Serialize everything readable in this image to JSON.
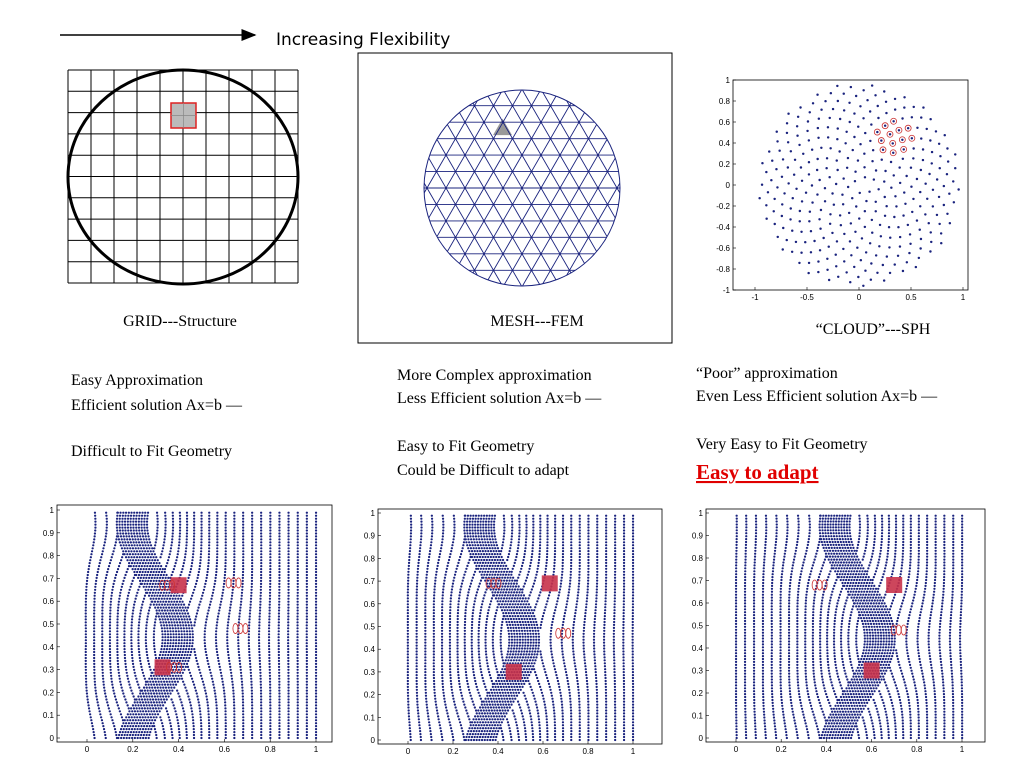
{
  "header": {
    "arrow_label": "Increasing Flexibility"
  },
  "panels": [
    {
      "caption": "GRID---Structure",
      "notes": [
        [
          "Easy Approximation",
          "Efficient solution Ax=b —"
        ],
        [
          "Difficult to Fit Geometry"
        ]
      ]
    },
    {
      "caption": "MESH---FEM",
      "notes": [
        [
          "More Complex approximation",
          "Less Efficient solution Ax=b —"
        ],
        [
          "Easy to Fit Geometry",
          "Could be Difficult to adapt"
        ]
      ]
    },
    {
      "caption": "“CLOUD”---SPH",
      "notes": [
        [
          "“Poor” approximation",
          "Even Less Efficient solution Ax=b —"
        ],
        [
          "Very Easy to Fit Geometry"
        ]
      ],
      "highlight": "Easy to adapt"
    }
  ],
  "cloud_plot": {
    "xticks": [
      -1,
      -0.5,
      0,
      0.5,
      1
    ],
    "yticks": [
      -1,
      -0.8,
      -0.6,
      -0.4,
      -0.2,
      0,
      0.2,
      0.4,
      0.6,
      0.8,
      1
    ]
  },
  "plots": [
    {
      "xticks": [
        0,
        0.2,
        0.4,
        0.6,
        0.8,
        1
      ],
      "yticks": [
        0,
        0.1,
        0.2,
        0.3,
        0.4,
        0.5,
        0.6,
        0.7,
        0.8,
        0.9,
        1
      ]
    },
    {
      "xticks": [
        0,
        0.2,
        0.4,
        0.6,
        0.8,
        1
      ],
      "yticks": [
        0,
        0.1,
        0.2,
        0.3,
        0.4,
        0.5,
        0.6,
        0.7,
        0.8,
        0.9,
        1
      ]
    },
    {
      "xticks": [
        0,
        0.2,
        0.4,
        0.6,
        0.8,
        1
      ],
      "yticks": [
        0,
        0.1,
        0.2,
        0.3,
        0.4,
        0.5,
        0.6,
        0.7,
        0.8,
        0.9,
        1
      ]
    }
  ]
}
